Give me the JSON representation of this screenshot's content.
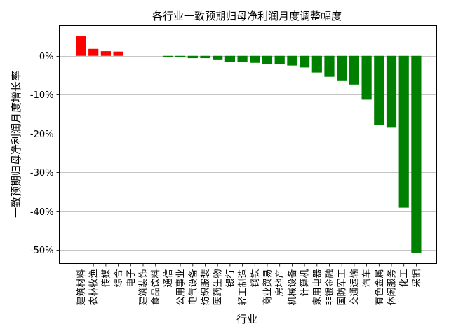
{
  "chart_data": {
    "type": "bar",
    "title": "各行业一致预期归母净利润月度调整幅度",
    "xlabel": "行业",
    "ylabel": "一致预期归母净利润月度增长率",
    "ylim": [
      -53.5,
      7.8
    ],
    "yticks": [
      0,
      -10,
      -20,
      -30,
      -40,
      -50
    ],
    "ytick_labels": [
      "0%",
      "-10%",
      "-20%",
      "-30%",
      "-40%",
      "-50%"
    ],
    "grid": "horizontal",
    "categories": [
      "建筑材料",
      "农林牧渔",
      "传媒",
      "综合",
      "电子",
      "建筑装饰",
      "食品饮料",
      "通信",
      "公用事业",
      "电气设备",
      "纺织服装",
      "医药生物",
      "银行",
      "轻工制造",
      "钢铁",
      "商业贸易",
      "房地产",
      "机械设备",
      "计算机",
      "家用电器",
      "非银金融",
      "国防军工",
      "交通运输",
      "汽车",
      "有色金属",
      "休闲服务",
      "化工",
      "采掘"
    ],
    "values": [
      5.0,
      1.8,
      1.2,
      1.1,
      0.0,
      0.0,
      0.0,
      -0.4,
      -0.4,
      -0.6,
      -0.6,
      -1.1,
      -1.5,
      -1.5,
      -1.8,
      -2.1,
      -2.1,
      -2.5,
      -3.0,
      -4.3,
      -5.4,
      -6.5,
      -7.4,
      -11.3,
      -17.8,
      -18.5,
      -39.1,
      -50.7
    ],
    "colors": {
      "positive": "#ff0000",
      "negative": "#008000"
    }
  }
}
